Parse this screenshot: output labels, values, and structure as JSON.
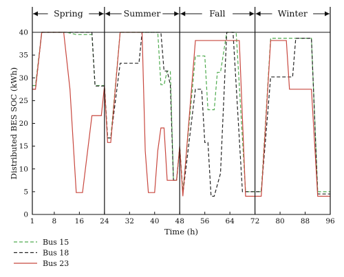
{
  "chart_data": {
    "type": "line",
    "xlabel": "Time (h)",
    "ylabel": "Distributed BES SOC (kWh)",
    "xlim": [
      1,
      96
    ],
    "ylim": [
      0,
      40
    ],
    "xticks": [
      1,
      8,
      16,
      24,
      32,
      40,
      48,
      56,
      64,
      72,
      80,
      88,
      96
    ],
    "yticks": [
      0,
      5,
      10,
      15,
      20,
      25,
      30,
      35,
      40
    ],
    "grid": false,
    "legend_position": "bottom-left, below plot",
    "seasons": [
      {
        "label": "Spring",
        "start": 1,
        "end": 24
      },
      {
        "label": "Summer",
        "start": 24,
        "end": 48
      },
      {
        "label": "Fall",
        "start": 48,
        "end": 72
      },
      {
        "label": "Winter",
        "start": 72,
        "end": 96
      }
    ],
    "series": [
      {
        "name": "Bus 15",
        "color": "#4daa4d",
        "dash": "dashed",
        "points": [
          [
            1,
            28.3
          ],
          [
            2,
            28.3
          ],
          [
            4,
            40
          ],
          [
            12,
            40
          ],
          [
            15,
            39.5
          ],
          [
            20,
            39.5
          ],
          [
            21,
            28.3
          ],
          [
            23,
            28.3
          ],
          [
            24,
            28.3
          ],
          [
            25,
            16.8
          ],
          [
            26,
            16.8
          ],
          [
            29,
            40
          ],
          [
            41,
            40
          ],
          [
            42,
            28.5
          ],
          [
            43,
            28.5
          ],
          [
            44,
            31.5
          ],
          [
            45,
            31.5
          ],
          [
            46,
            7.5
          ],
          [
            47,
            7.5
          ],
          [
            48,
            15
          ],
          [
            49,
            5
          ],
          [
            53,
            34.8
          ],
          [
            56,
            34.8
          ],
          [
            57,
            23
          ],
          [
            59,
            23
          ],
          [
            60,
            31.2
          ],
          [
            61,
            31.2
          ],
          [
            63,
            40
          ],
          [
            66,
            40
          ],
          [
            69,
            5
          ],
          [
            71,
            5
          ],
          [
            72,
            5
          ],
          [
            73,
            5
          ],
          [
            74,
            5
          ],
          [
            77,
            38.7
          ],
          [
            89,
            38.7
          ],
          [
            90,
            38.7
          ],
          [
            92,
            5
          ],
          [
            94,
            5
          ],
          [
            96,
            5
          ]
        ]
      },
      {
        "name": "Bus 18",
        "color": "#222222",
        "dash": "dashed",
        "points": [
          [
            1,
            27.5
          ],
          [
            2,
            27.5
          ],
          [
            4,
            40
          ],
          [
            20,
            40
          ],
          [
            21,
            28.2
          ],
          [
            23,
            28.2
          ],
          [
            24,
            28.2
          ],
          [
            25,
            16.8
          ],
          [
            26,
            16.8
          ],
          [
            29,
            33.2
          ],
          [
            35,
            33.2
          ],
          [
            36,
            40
          ],
          [
            42,
            40
          ],
          [
            43,
            31.5
          ],
          [
            44,
            31.5
          ],
          [
            45,
            28.5
          ],
          [
            46,
            7.5
          ],
          [
            47,
            7.5
          ],
          [
            48,
            14.7
          ],
          [
            49,
            4.5
          ],
          [
            53,
            27.5
          ],
          [
            55,
            27.5
          ],
          [
            56,
            15.8
          ],
          [
            57,
            15.8
          ],
          [
            58,
            4
          ],
          [
            59,
            4
          ],
          [
            61,
            9
          ],
          [
            63,
            40
          ],
          [
            65,
            40
          ],
          [
            68,
            5
          ],
          [
            71,
            5
          ],
          [
            72,
            5
          ],
          [
            73,
            5
          ],
          [
            74,
            5
          ],
          [
            77,
            30.2
          ],
          [
            84,
            30.2
          ],
          [
            85,
            38.7
          ],
          [
            89,
            38.7
          ],
          [
            90,
            38.7
          ],
          [
            92,
            4.5
          ],
          [
            94,
            4.5
          ],
          [
            96,
            4.5
          ]
        ]
      },
      {
        "name": "Bus 23",
        "color": "#c8473e",
        "dash": "solid",
        "points": [
          [
            1,
            27.5
          ],
          [
            2,
            27.5
          ],
          [
            4,
            40
          ],
          [
            11,
            40
          ],
          [
            13,
            27.5
          ],
          [
            15,
            4.8
          ],
          [
            17,
            4.8
          ],
          [
            20,
            21.7
          ],
          [
            23,
            21.7
          ],
          [
            24,
            28.2
          ],
          [
            25,
            15.8
          ],
          [
            26,
            15.8
          ],
          [
            29,
            40
          ],
          [
            36,
            40
          ],
          [
            37,
            14
          ],
          [
            38,
            4.8
          ],
          [
            40,
            4.8
          ],
          [
            41,
            14
          ],
          [
            42,
            19
          ],
          [
            43,
            19
          ],
          [
            44,
            7.5
          ],
          [
            46,
            7.5
          ],
          [
            47,
            7.5
          ],
          [
            48,
            15
          ],
          [
            49,
            4
          ],
          [
            53,
            38.2
          ],
          [
            66,
            38.2
          ],
          [
            67,
            38.2
          ],
          [
            69,
            4
          ],
          [
            71,
            4
          ],
          [
            72,
            4
          ],
          [
            73,
            4
          ],
          [
            74,
            4
          ],
          [
            77,
            38.2
          ],
          [
            82,
            38.2
          ],
          [
            83,
            27.5
          ],
          [
            89,
            27.5
          ],
          [
            90,
            27.5
          ],
          [
            92,
            4
          ],
          [
            94,
            4
          ],
          [
            96,
            4
          ]
        ]
      }
    ]
  }
}
